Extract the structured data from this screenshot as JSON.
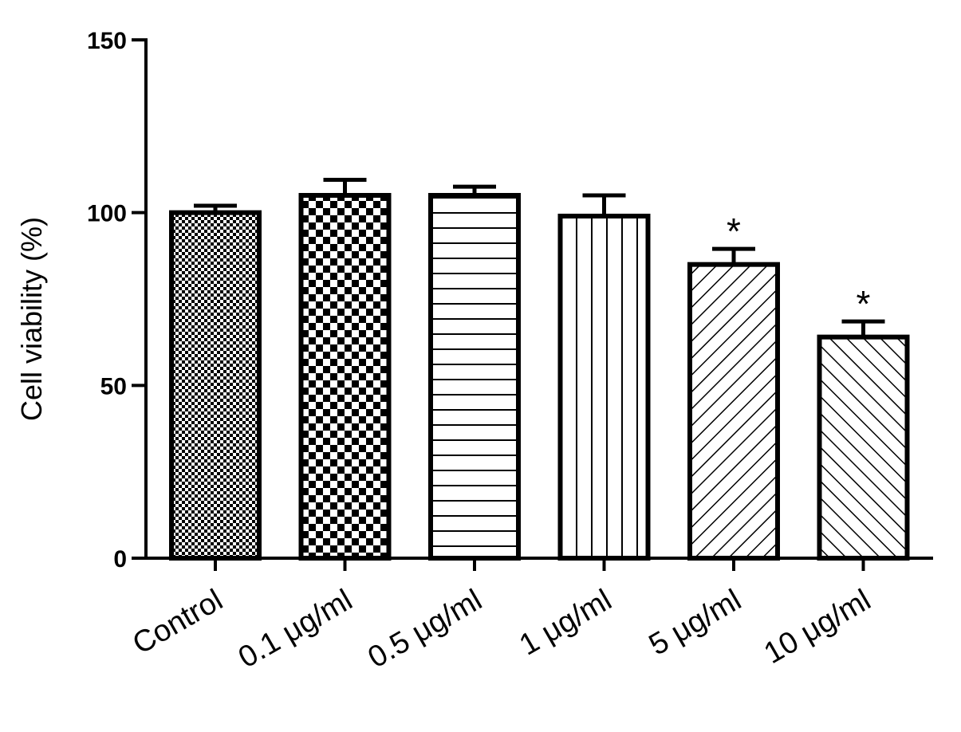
{
  "chart_data": {
    "type": "bar",
    "title": "",
    "xlabel": "",
    "ylabel": "Cell viability (%)",
    "ylim": [
      0,
      150
    ],
    "yticks": [
      0,
      50,
      100,
      150
    ],
    "grid": false,
    "categories": [
      "Control",
      "0.1 μg/ml",
      "0.5 μg/ml",
      "1 μg/ml",
      "5 μg/ml",
      "10 μg/ml"
    ],
    "values": [
      100,
      105,
      105,
      99,
      85,
      64
    ],
    "errors": [
      2,
      4.5,
      2.5,
      6,
      4.5,
      4.5
    ],
    "annotations": [
      "",
      "",
      "",
      "",
      "*",
      "*"
    ],
    "patterns": [
      "fine-checker",
      "checker",
      "horizontal-lines",
      "vertical-lines",
      "diagonal-right",
      "diagonal-left"
    ],
    "bar_fill": "#ffffff",
    "stroke_color": "#000000"
  }
}
